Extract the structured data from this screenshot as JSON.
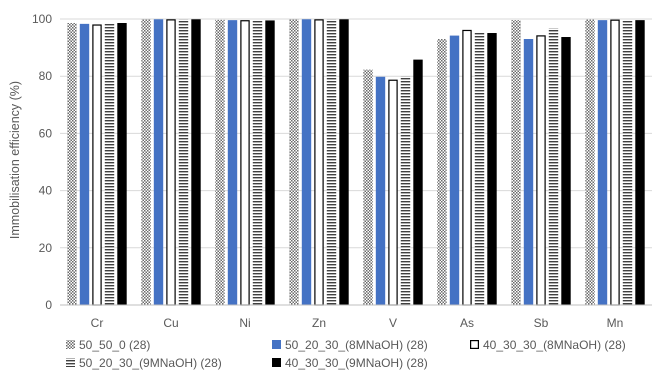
{
  "chart_data": {
    "type": "bar",
    "title": "",
    "xlabel": "",
    "ylabel": "Immobilisation efficiency (%)",
    "ylim": [
      0,
      100
    ],
    "yticks": [
      0,
      20,
      40,
      60,
      80,
      100
    ],
    "grid": true,
    "legend_position": "bottom",
    "categories": [
      "Cr",
      "Cu",
      "Ni",
      "Zn",
      "V",
      "As",
      "Sb",
      "Mn"
    ],
    "series": [
      {
        "name": "50_50_0 (28)",
        "pattern": "crosshatch",
        "color": "#808080",
        "values": [
          98.6,
          99.9,
          99.7,
          99.9,
          82.3,
          93.0,
          99.6,
          99.8
        ]
      },
      {
        "name": "50_20_30_(8MNaOH) (28)",
        "pattern": "solid",
        "color": "#4472C4",
        "values": [
          98.3,
          99.9,
          99.6,
          99.9,
          79.8,
          94.2,
          93.0,
          99.6
        ]
      },
      {
        "name": "40_30_30_(8MNaOH) (28)",
        "pattern": "outline",
        "color": "#ffffff",
        "values": [
          98.1,
          99.9,
          99.6,
          99.9,
          78.8,
          96.2,
          94.3,
          99.8
        ]
      },
      {
        "name": "50_20_30_(9MNaOH) (28)",
        "pattern": "horizontal-lines",
        "color": "#404040",
        "values": [
          98.7,
          99.9,
          99.5,
          99.9,
          80.0,
          95.3,
          96.8,
          99.6
        ]
      },
      {
        "name": "40_30_30_(9MNaOH) (28)",
        "pattern": "solid",
        "color": "#000000",
        "values": [
          98.6,
          99.9,
          99.5,
          99.9,
          85.8,
          95.1,
          93.7,
          99.6
        ]
      }
    ]
  }
}
